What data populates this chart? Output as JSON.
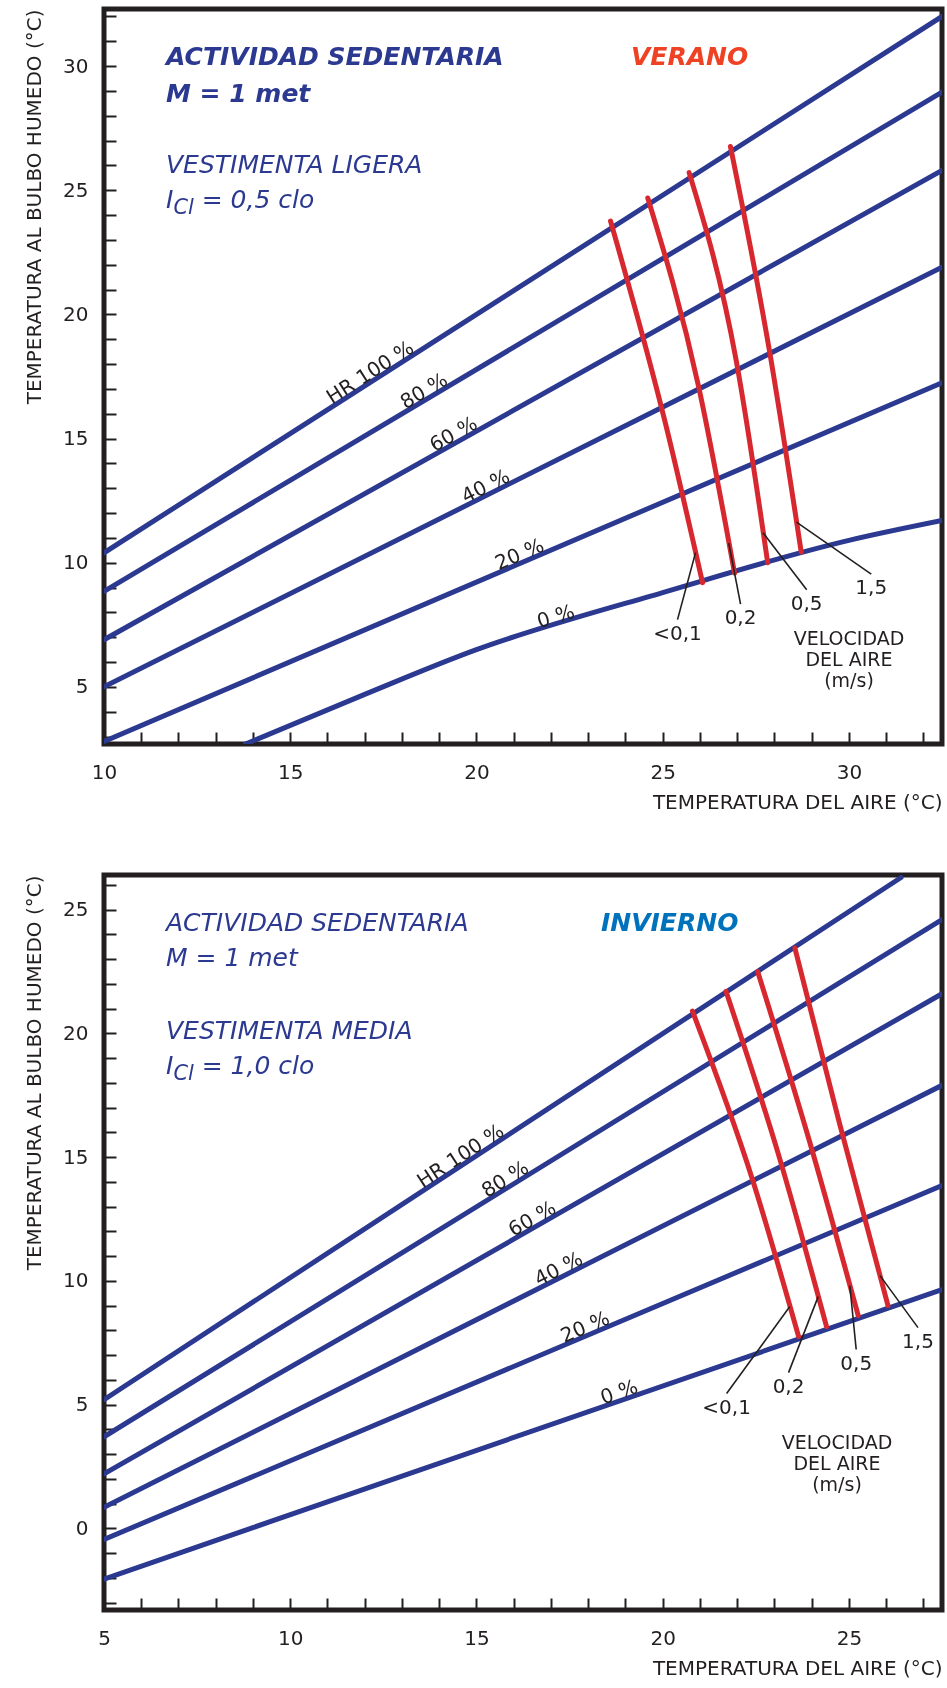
{
  "chart_data": [
    {
      "type": "line",
      "xlabel": "TEMPERATURA DEL AIRE (°C)",
      "ylabel": "TEMPERATURA AL BULBO HUMEDO (°C)",
      "xlim": [
        10,
        32.5
      ],
      "ylim": [
        2.7,
        32.3
      ],
      "xticks": [
        10,
        {
          "value": 11,
          "label": null
        },
        {
          "value": 12,
          "label": null
        },
        {
          "value": 13,
          "label": null
        },
        {
          "value": 14,
          "label": null
        },
        15,
        {
          "value": 16,
          "label": null
        },
        {
          "value": 17,
          "label": null
        },
        {
          "value": 18,
          "label": null
        },
        {
          "value": 19,
          "label": null
        },
        20,
        {
          "value": 21,
          "label": null
        },
        {
          "value": 22,
          "label": null
        },
        {
          "value": 23,
          "label": null
        },
        {
          "value": 24,
          "label": null
        },
        25,
        {
          "value": 26,
          "label": null
        },
        {
          "value": 27,
          "label": null
        },
        {
          "value": 28,
          "label": null
        },
        {
          "value": 29,
          "label": null
        },
        30,
        {
          "value": 31,
          "label": null
        },
        {
          "value": 32,
          "label": null
        }
      ],
      "yticks": [
        {
          "value": 3,
          "label": null
        },
        {
          "value": 4,
          "label": null
        },
        5,
        {
          "value": 6,
          "label": null
        },
        {
          "value": 7,
          "label": null
        },
        {
          "value": 8,
          "label": null
        },
        {
          "value": 9,
          "label": null
        },
        10,
        {
          "value": 11,
          "label": null
        },
        {
          "value": 12,
          "label": null
        },
        {
          "value": 13,
          "label": null
        },
        {
          "value": 14,
          "label": null
        },
        15,
        {
          "value": 16,
          "label": null
        },
        {
          "value": 17,
          "label": null
        },
        {
          "value": 18,
          "label": null
        },
        {
          "value": 19,
          "label": null
        },
        20,
        {
          "value": 21,
          "label": null
        },
        {
          "value": 22,
          "label": null
        },
        {
          "value": 23,
          "label": null
        },
        {
          "value": 24,
          "label": null
        },
        25,
        {
          "value": 26,
          "label": null
        },
        {
          "value": 27,
          "label": null
        },
        {
          "value": 28,
          "label": null
        },
        {
          "value": 29,
          "label": null
        },
        30,
        {
          "value": 31,
          "label": null
        },
        {
          "value": 32,
          "label": null
        }
      ],
      "series": [
        {
          "name": "HR 100 %",
          "color": "#2b3990",
          "x": [
            10,
            32.5
          ],
          "values": [
            10.4,
            32.0
          ]
        },
        {
          "name": "80 %",
          "color": "#2b3990",
          "x": [
            10,
            32.5
          ],
          "values": [
            8.85,
            28.95
          ]
        },
        {
          "name": "60 %",
          "color": "#2b3990",
          "x": [
            10,
            32.5
          ],
          "values": [
            6.9,
            25.8
          ]
        },
        {
          "name": "40 %",
          "color": "#2b3990",
          "x": [
            10,
            32.5
          ],
          "values": [
            5.0,
            21.9
          ]
        },
        {
          "name": "20 %",
          "color": "#2b3990",
          "x": [
            10,
            32.5
          ],
          "values": [
            2.8,
            17.25
          ]
        },
        {
          "name": "0 %",
          "color": "#2b3990",
          "x": [
            13.8,
            17,
            20,
            25,
            30,
            32.5
          ],
          "values": [
            2.7,
            4.7,
            6.5,
            8.8,
            10.9,
            11.7
          ]
        },
        {
          "name": "<0,1",
          "color": "#d7282f",
          "x": [
            23.6,
            25.06,
            26.07
          ],
          "values": [
            23.76,
            15.7,
            9.2
          ]
        },
        {
          "name": "0,2",
          "color": "#d7282f",
          "x": [
            24.6,
            25.96,
            26.93
          ],
          "values": [
            24.69,
            17.13,
            9.58
          ]
        },
        {
          "name": "0,5",
          "color": "#d7282f",
          "x": [
            25.71,
            26.98,
            27.82
          ],
          "values": [
            25.71,
            18.1,
            10.0
          ]
        },
        {
          "name": "1,5",
          "color": "#d7282f",
          "x": [
            26.82,
            27.86,
            28.72
          ],
          "values": [
            26.76,
            18.6,
            10.43
          ]
        }
      ],
      "annotations": [
        "ACTIVIDAD SEDENTARIA",
        "M = 1 met",
        "VERANO",
        "VESTIMENTA LIGERA",
        "I$_{Cl}$ = 0,5 clo",
        "VELOCIDAD DEL AIRE (m/s)"
      ]
    },
    {
      "type": "line",
      "xlabel": "TEMPERATURA DEL AIRE (°C)",
      "ylabel": "TEMPERATURA AL BULBO HUMEDO (°C)",
      "xlim": [
        5,
        27.5
      ],
      "ylim": [
        -3.3,
        26.4
      ],
      "xticks": [
        5,
        {
          "value": 6,
          "label": null
        },
        {
          "value": 7,
          "label": null
        },
        {
          "value": 8,
          "label": null
        },
        {
          "value": 9,
          "label": null
        },
        10,
        {
          "value": 11,
          "label": null
        },
        {
          "value": 12,
          "label": null
        },
        {
          "value": 13,
          "label": null
        },
        {
          "value": 14,
          "label": null
        },
        15,
        {
          "value": 16,
          "label": null
        },
        {
          "value": 17,
          "label": null
        },
        {
          "value": 18,
          "label": null
        },
        {
          "value": 19,
          "label": null
        },
        20,
        {
          "value": 21,
          "label": null
        },
        {
          "value": 22,
          "label": null
        },
        {
          "value": 23,
          "label": null
        },
        {
          "value": 24,
          "label": null
        },
        25,
        {
          "value": 26,
          "label": null
        },
        {
          "value": 27,
          "label": null
        }
      ],
      "yticks": [
        {
          "value": -3,
          "label": null
        },
        {
          "value": -2,
          "label": null
        },
        {
          "value": -1,
          "label": null
        },
        0,
        {
          "value": 1,
          "label": null
        },
        {
          "value": 2,
          "label": null
        },
        {
          "value": 3,
          "label": null
        },
        {
          "value": 4,
          "label": null
        },
        5,
        {
          "value": 6,
          "label": null
        },
        {
          "value": 7,
          "label": null
        },
        {
          "value": 8,
          "label": null
        },
        {
          "value": 9,
          "label": null
        },
        10,
        {
          "value": 11,
          "label": null
        },
        {
          "value": 12,
          "label": null
        },
        {
          "value": 13,
          "label": null
        },
        {
          "value": 14,
          "label": null
        },
        15,
        {
          "value": 16,
          "label": null
        },
        {
          "value": 17,
          "label": null
        },
        {
          "value": 18,
          "label": null
        },
        {
          "value": 19,
          "label": null
        },
        20,
        {
          "value": 21,
          "label": null
        },
        {
          "value": 22,
          "label": null
        },
        {
          "value": 23,
          "label": null
        },
        {
          "value": 24,
          "label": null
        },
        25,
        {
          "value": 26,
          "label": null
        }
      ],
      "series": [
        {
          "name": "HR 100 %",
          "color": "#2b3990",
          "x": [
            5,
            26.4
          ],
          "values": [
            5.2,
            26.3
          ]
        },
        {
          "name": "80 %",
          "color": "#2b3990",
          "x": [
            5,
            27.5
          ],
          "values": [
            3.7,
            24.6
          ]
        },
        {
          "name": "60 %",
          "color": "#2b3990",
          "x": [
            5,
            27.5
          ],
          "values": [
            2.2,
            21.6
          ]
        },
        {
          "name": "40 %",
          "color": "#2b3990",
          "x": [
            5,
            27.5
          ],
          "values": [
            0.85,
            17.9
          ]
        },
        {
          "name": "20 %",
          "color": "#2b3990",
          "x": [
            5,
            27.5
          ],
          "values": [
            -0.45,
            13.85
          ]
        },
        {
          "name": "0 %",
          "color": "#2b3990",
          "x": [
            5,
            27.5
          ],
          "values": [
            -2.05,
            9.65
          ]
        },
        {
          "name": "<0,1",
          "color": "#d7282f",
          "x": [
            20.8,
            22.4,
            23.65
          ],
          "values": [
            20.9,
            14.15,
            7.75
          ]
        },
        {
          "name": "0,2",
          "color": "#d7282f",
          "x": [
            21.7,
            23.15,
            24.4
          ],
          "values": [
            21.7,
            14.9,
            8.15
          ]
        },
        {
          "name": "0,5",
          "color": "#d7282f",
          "x": [
            22.55,
            23.95,
            25.25
          ],
          "values": [
            22.5,
            15.6,
            8.6
          ]
        },
        {
          "name": "1,5",
          "color": "#d7282f",
          "x": [
            23.55,
            24.75,
            26.05
          ],
          "values": [
            23.45,
            16.35,
            9.0
          ]
        }
      ],
      "annotations": [
        "ACTIVIDAD SEDENTARIA",
        "M = 1 met",
        "INVIERNO",
        "VESTIMENTA MEDIA",
        "I$_{Cl}$ = 1,0 clo",
        "VELOCIDAD DEL AIRE (m/s)"
      ]
    }
  ]
}
